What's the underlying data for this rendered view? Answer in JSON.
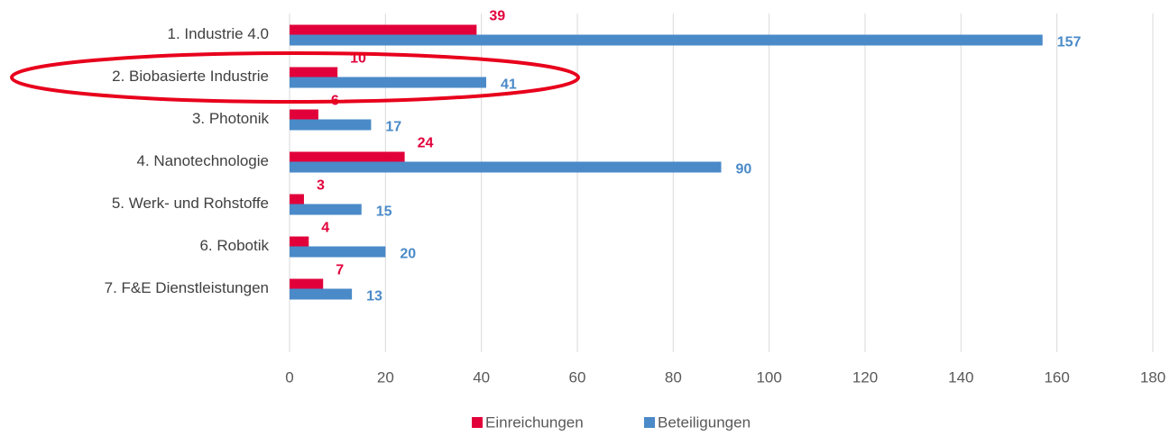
{
  "chart_data": {
    "type": "bar",
    "orientation": "horizontal",
    "categories": [
      "1. Industrie 4.0",
      "2. Biobasierte Industrie",
      "3. Photonik",
      "4. Nanotechnologie",
      "5. Werk- und Rohstoffe",
      "6. Robotik",
      "7. F&E Dienstleistungen",
      null
    ],
    "series": [
      {
        "name": "Einreichungen",
        "color": "#e2003b",
        "values": [
          39,
          10,
          6,
          24,
          3,
          4,
          7,
          null
        ]
      },
      {
        "name": "Beteiligungen",
        "color": "#4a8ac8",
        "values": [
          157,
          41,
          17,
          90,
          15,
          20,
          13,
          null
        ]
      }
    ],
    "xlim": [
      0,
      180
    ],
    "xticks": [
      0,
      20,
      40,
      60,
      80,
      100,
      120,
      140,
      160,
      180
    ],
    "grid": true,
    "legend": "bottom"
  }
}
